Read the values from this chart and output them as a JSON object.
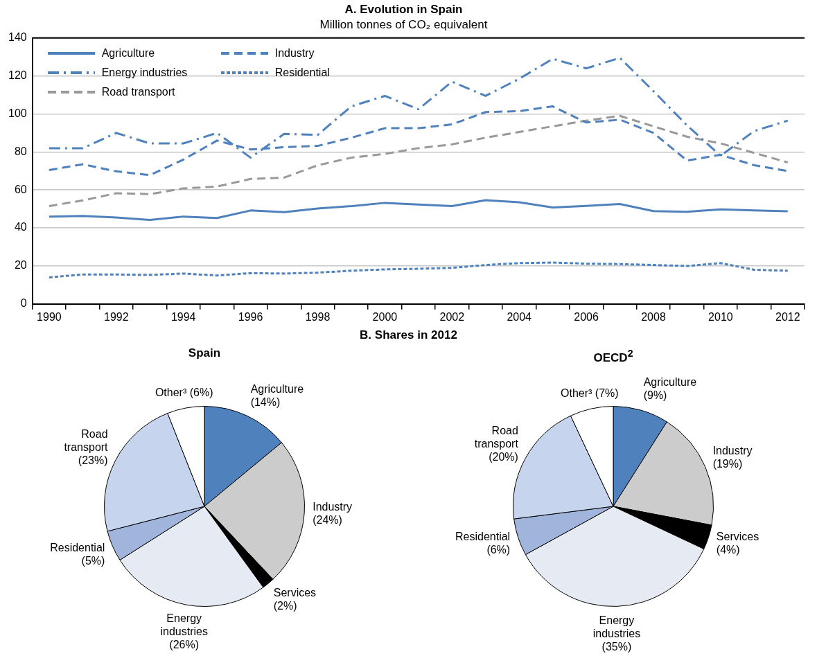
{
  "chart_data": [
    {
      "type": "line",
      "title": "A. Evolution in Spain",
      "subtitle": "Million tonnes of CO₂ equivalent",
      "categories": [
        "1990",
        null,
        "1992",
        null,
        "1994",
        null,
        "1996",
        null,
        "1998",
        null,
        "2000",
        null,
        "2002",
        null,
        "2004",
        null,
        "2006",
        null,
        "2008",
        null,
        "2010",
        null,
        "2012"
      ],
      "series": [
        {
          "name": "Agriculture",
          "color": "#4f81bd",
          "line_style": "solid",
          "values": [
            46,
            46.3,
            45.5,
            44.2,
            46,
            45.2,
            49.2,
            48.3,
            50.2,
            51.5,
            53.2,
            52.3,
            51.5,
            54.6,
            53.5,
            50.8,
            51.6,
            52.6,
            48.9,
            48.5,
            49.8,
            49.2,
            48.8
          ]
        },
        {
          "name": "Industry",
          "color": "#4f81bd",
          "line_style": "dashed",
          "values": [
            70.5,
            73.5,
            69.8,
            67.8,
            76,
            86,
            81.3,
            82.5,
            83.2,
            87.5,
            92.5,
            92.5,
            94.5,
            101,
            101.5,
            104,
            95.5,
            97,
            90,
            75.5,
            78.5,
            73,
            70
          ]
        },
        {
          "name": "Energy industries",
          "color": "#4f81bd",
          "line_style": "dashdot",
          "values": [
            82,
            82,
            90,
            84.5,
            84.5,
            90,
            77,
            89.5,
            89,
            104,
            109.5,
            102.5,
            117,
            109.5,
            118.5,
            129,
            124,
            129.5,
            112,
            94,
            78,
            91,
            96.5
          ]
        },
        {
          "name": "Residential",
          "color": "#4f81bd",
          "line_style": "dotted",
          "values": [
            14,
            15.5,
            15.5,
            15.3,
            16,
            15,
            16.2,
            16,
            16.5,
            17.5,
            18.2,
            18.5,
            19,
            20.5,
            21.5,
            21.8,
            21.2,
            21,
            20.5,
            20,
            21.5,
            18,
            17.5
          ]
        },
        {
          "name": "Road transport",
          "color": "#999999",
          "line_style": "dashed",
          "values": [
            51.5,
            54.5,
            58.3,
            57.8,
            60.8,
            61.8,
            65.8,
            66.5,
            73,
            77,
            79,
            82,
            84,
            87.5,
            90.5,
            93.5,
            96.5,
            99,
            93.5,
            88,
            84.5,
            79.5,
            74.5
          ]
        }
      ],
      "ylim": [
        0,
        140
      ],
      "yticks": [
        0,
        20,
        40,
        60,
        80,
        100,
        120,
        140
      ],
      "grid": "y",
      "legend": "top left",
      "marker": "none"
    },
    {
      "type": "pie",
      "title": "Spain",
      "annotations": [
        "B. Shares in 2012"
      ],
      "categories": [
        "Agriculture",
        "Industry",
        "Services",
        "Energy industries",
        "Residential",
        "Road transport",
        "Other³"
      ],
      "values": [
        14,
        24,
        2,
        26,
        5,
        23,
        6
      ],
      "value_labels": [
        "(14%)",
        "(24%)",
        "(2%)",
        "(26%)",
        "(5%)",
        "(23%)",
        "(6%)"
      ],
      "colors": [
        "#4f81bd",
        "#cccccc",
        "#000000",
        "#e6ebf3",
        "#a0b4dc",
        "#c6d4ee",
        "#ffffff"
      ],
      "legend": false
    },
    {
      "type": "pie",
      "title": "OECD$^{2}$",
      "categories": [
        "Agriculture",
        "Industry",
        "Services",
        "Energy industries",
        "Residential",
        "Road transport",
        "Other³"
      ],
      "values": [
        9,
        19,
        4,
        35,
        6,
        20,
        7
      ],
      "value_labels": [
        "(9%)",
        "(19%)",
        "(4%)",
        "(35%)",
        "(6%)",
        "(20%)",
        "(7%)"
      ],
      "colors": [
        "#4f81bd",
        "#cccccc",
        "#000000",
        "#e6ebf3",
        "#a0b4dc",
        "#c6d4ee",
        "#ffffff"
      ],
      "legend": false
    }
  ]
}
